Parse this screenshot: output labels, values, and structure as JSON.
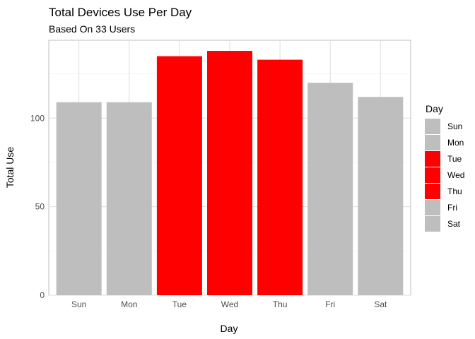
{
  "chart_data": {
    "type": "bar",
    "title": "Total Devices Use Per Day",
    "subtitle": "Based On 33 Users",
    "xlabel": "Day",
    "ylabel": "Total Use",
    "categories": [
      "Sun",
      "Mon",
      "Tue",
      "Wed",
      "Thu",
      "Fri",
      "Sat"
    ],
    "values": [
      109,
      109,
      135,
      138,
      133,
      120,
      112
    ],
    "colors": [
      "#BEBEBE",
      "#BEBEBE",
      "#FF0000",
      "#FF0000",
      "#FF0000",
      "#BEBEBE",
      "#BEBEBE"
    ],
    "ylim": [
      0,
      144
    ],
    "yticks": [
      0,
      50,
      100
    ],
    "grid": true,
    "legend": {
      "title": "Day",
      "position": "right",
      "entries": [
        "Sun",
        "Mon",
        "Tue",
        "Wed",
        "Thu",
        "Fri",
        "Sat"
      ]
    }
  }
}
